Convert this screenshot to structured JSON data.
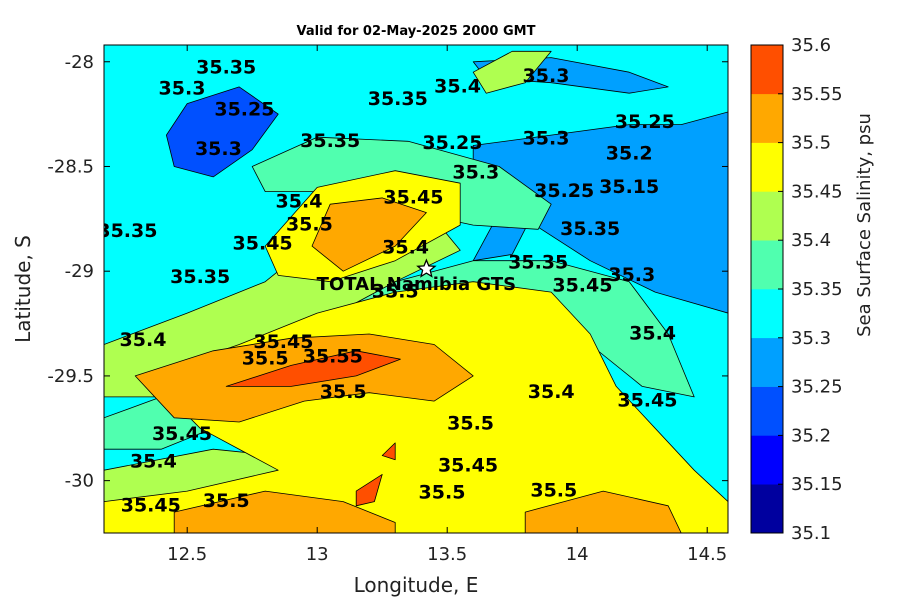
{
  "map": {
    "title": "Valid for 02-May-2025 2000 GMT",
    "xlabel": "Longitude, E",
    "ylabel": "Latitude, S",
    "xlim": [
      12.18,
      14.58
    ],
    "ylim": [
      -30.25,
      -27.92
    ],
    "x_ticks": [
      {
        "value": 12.5,
        "label": "12.5"
      },
      {
        "value": 13,
        "label": "13"
      },
      {
        "value": 13.5,
        "label": "13.5"
      },
      {
        "value": 14,
        "label": "14"
      },
      {
        "value": 14.5,
        "label": "14.5"
      }
    ],
    "y_ticks": [
      {
        "value": -28,
        "label": "-28"
      },
      {
        "value": -28.5,
        "label": "-28.5"
      },
      {
        "value": -29,
        "label": "-29"
      },
      {
        "value": -29.5,
        "label": "-29.5"
      },
      {
        "value": -30,
        "label": "-30"
      }
    ],
    "site": {
      "name": "TOTAL Namibia GTS",
      "lon": 13.42,
      "lat": -28.99,
      "marker": "star"
    },
    "background_color": "#00ffff",
    "contour_regions": [
      {
        "level": "35.1-35.15",
        "color": "#00009f",
        "points": [
          [
            14.2,
            -28.55
          ],
          [
            14.4,
            -28.45
          ],
          [
            14.58,
            -28.38
          ],
          [
            14.58,
            -28.88
          ],
          [
            14.35,
            -28.8
          ],
          [
            14.15,
            -28.7
          ],
          [
            14.08,
            -28.62
          ]
        ]
      },
      {
        "level": "35.2-35.25",
        "color": "#0050ff",
        "points": [
          [
            12.5,
            -28.2
          ],
          [
            12.7,
            -28.12
          ],
          [
            12.85,
            -28.25
          ],
          [
            12.75,
            -28.42
          ],
          [
            12.6,
            -28.55
          ],
          [
            12.45,
            -28.5
          ],
          [
            12.42,
            -28.35
          ]
        ]
      },
      {
        "level": "35.2-35.25",
        "color": "#0050ff",
        "points": [
          [
            14.0,
            -28.5
          ],
          [
            14.3,
            -28.36
          ],
          [
            14.58,
            -28.28
          ],
          [
            14.58,
            -29.0
          ],
          [
            14.3,
            -28.95
          ],
          [
            14.1,
            -28.8
          ],
          [
            13.95,
            -28.62
          ]
        ]
      },
      {
        "level": "35.25-35.3",
        "color": "#00a0ff",
        "points": [
          [
            13.6,
            -28.4
          ],
          [
            13.9,
            -28.35
          ],
          [
            14.2,
            -28.3
          ],
          [
            14.4,
            -28.3
          ],
          [
            14.58,
            -28.24
          ],
          [
            14.58,
            -29.2
          ],
          [
            14.3,
            -29.1
          ],
          [
            14.05,
            -28.95
          ],
          [
            13.8,
            -28.75
          ],
          [
            13.6,
            -28.55
          ]
        ]
      },
      {
        "level": "35.25-35.3",
        "color": "#00a0ff",
        "points": [
          [
            13.6,
            -28.95
          ],
          [
            13.7,
            -28.72
          ],
          [
            13.82,
            -28.75
          ],
          [
            13.75,
            -28.92
          ]
        ]
      },
      {
        "level": "35.25-35.3",
        "color": "#00a0ff",
        "points": [
          [
            13.6,
            -28.0
          ],
          [
            13.9,
            -27.98
          ],
          [
            14.2,
            -28.05
          ],
          [
            14.35,
            -28.12
          ],
          [
            14.2,
            -28.15
          ],
          [
            13.9,
            -28.1
          ],
          [
            13.65,
            -28.08
          ]
        ]
      },
      {
        "level": "35.35-35.4",
        "color": "#50ffaf",
        "points": [
          [
            12.75,
            -28.5
          ],
          [
            13.0,
            -28.36
          ],
          [
            13.35,
            -28.38
          ],
          [
            13.7,
            -28.5
          ],
          [
            13.9,
            -28.68
          ],
          [
            13.85,
            -28.8
          ],
          [
            13.6,
            -28.78
          ],
          [
            13.3,
            -28.7
          ],
          [
            13.0,
            -28.62
          ],
          [
            12.8,
            -28.62
          ]
        ]
      },
      {
        "level": "35.35-35.4",
        "color": "#50ffaf",
        "points": [
          [
            13.0,
            -29.25
          ],
          [
            13.3,
            -29.05
          ],
          [
            13.6,
            -28.95
          ],
          [
            13.9,
            -28.95
          ],
          [
            14.2,
            -29.05
          ],
          [
            14.35,
            -29.3
          ],
          [
            14.45,
            -29.6
          ],
          [
            14.25,
            -29.55
          ],
          [
            14.05,
            -29.35
          ],
          [
            13.7,
            -29.25
          ],
          [
            13.4,
            -29.25
          ],
          [
            13.1,
            -29.35
          ]
        ]
      },
      {
        "level": "35.35-35.4",
        "color": "#50ffaf",
        "points": [
          [
            12.18,
            -29.7
          ],
          [
            12.4,
            -29.6
          ],
          [
            12.6,
            -29.75
          ],
          [
            12.4,
            -29.85
          ],
          [
            12.18,
            -29.85
          ]
        ]
      },
      {
        "level": "35.4-35.45",
        "color": "#afff50",
        "points": [
          [
            12.18,
            -29.35
          ],
          [
            12.5,
            -29.2
          ],
          [
            12.8,
            -29.05
          ],
          [
            13.0,
            -28.85
          ],
          [
            13.2,
            -28.72
          ],
          [
            13.45,
            -28.75
          ],
          [
            13.55,
            -28.9
          ],
          [
            13.3,
            -29.05
          ],
          [
            13.0,
            -29.25
          ],
          [
            12.7,
            -29.4
          ],
          [
            12.5,
            -29.6
          ],
          [
            12.18,
            -29.6
          ]
        ]
      },
      {
        "level": "35.4-35.45",
        "color": "#afff50",
        "points": [
          [
            13.75,
            -27.95
          ],
          [
            13.9,
            -27.95
          ],
          [
            13.8,
            -28.1
          ],
          [
            13.65,
            -28.15
          ],
          [
            13.6,
            -28.05
          ]
        ]
      },
      {
        "level": "35.4-35.45",
        "color": "#afff50",
        "points": [
          [
            12.18,
            -29.95
          ],
          [
            12.6,
            -29.85
          ],
          [
            13.0,
            -29.9
          ],
          [
            12.8,
            -30.05
          ],
          [
            12.5,
            -30.1
          ],
          [
            12.18,
            -30.1
          ]
        ]
      },
      {
        "level": "35.45-35.5",
        "color": "#ffff00",
        "points": [
          [
            12.35,
            -29.5
          ],
          [
            12.7,
            -29.35
          ],
          [
            13.0,
            -29.2
          ],
          [
            13.3,
            -29.1
          ],
          [
            13.6,
            -29.05
          ],
          [
            13.9,
            -29.1
          ],
          [
            14.05,
            -29.3
          ],
          [
            14.15,
            -29.55
          ],
          [
            14.3,
            -29.75
          ],
          [
            14.45,
            -29.95
          ],
          [
            14.58,
            -30.1
          ],
          [
            14.58,
            -30.25
          ],
          [
            12.18,
            -30.25
          ],
          [
            12.18,
            -30.1
          ],
          [
            12.5,
            -30.05
          ],
          [
            12.85,
            -29.95
          ],
          [
            12.55,
            -29.75
          ]
        ]
      },
      {
        "level": "35.45-35.5",
        "color": "#ffff00",
        "points": [
          [
            12.8,
            -28.88
          ],
          [
            13.0,
            -28.6
          ],
          [
            13.3,
            -28.52
          ],
          [
            13.55,
            -28.58
          ],
          [
            13.55,
            -28.78
          ],
          [
            13.3,
            -28.95
          ],
          [
            13.05,
            -29.05
          ],
          [
            12.85,
            -29.02
          ]
        ]
      },
      {
        "level": "35.5-35.55",
        "color": "#ffa800",
        "points": [
          [
            12.3,
            -29.5
          ],
          [
            12.6,
            -29.38
          ],
          [
            12.9,
            -29.32
          ],
          [
            13.2,
            -29.3
          ],
          [
            13.45,
            -29.35
          ],
          [
            13.6,
            -29.5
          ],
          [
            13.45,
            -29.62
          ],
          [
            13.2,
            -29.58
          ],
          [
            12.95,
            -29.62
          ],
          [
            12.7,
            -29.72
          ],
          [
            12.45,
            -29.7
          ]
        ]
      },
      {
        "level": "35.5-35.55",
        "color": "#ffa800",
        "points": [
          [
            12.98,
            -28.88
          ],
          [
            13.05,
            -28.68
          ],
          [
            13.25,
            -28.65
          ],
          [
            13.42,
            -28.72
          ],
          [
            13.3,
            -28.88
          ],
          [
            13.1,
            -29.0
          ]
        ]
      },
      {
        "level": "35.5-35.55",
        "color": "#ffa800",
        "points": [
          [
            12.45,
            -30.15
          ],
          [
            12.8,
            -30.05
          ],
          [
            13.1,
            -30.1
          ],
          [
            13.3,
            -30.2
          ],
          [
            13.3,
            -30.25
          ],
          [
            12.45,
            -30.25
          ]
        ]
      },
      {
        "level": "35.5-35.55",
        "color": "#ffa800",
        "points": [
          [
            13.8,
            -30.15
          ],
          [
            14.1,
            -30.05
          ],
          [
            14.35,
            -30.12
          ],
          [
            14.4,
            -30.25
          ],
          [
            13.8,
            -30.25
          ]
        ]
      },
      {
        "level": "35.55-35.6",
        "color": "#ff4f00",
        "points": [
          [
            12.65,
            -29.55
          ],
          [
            12.9,
            -29.45
          ],
          [
            13.15,
            -29.38
          ],
          [
            13.32,
            -29.42
          ],
          [
            13.15,
            -29.5
          ],
          [
            12.9,
            -29.55
          ]
        ]
      },
      {
        "level": "35.55-35.6",
        "color": "#ff4f00",
        "points": [
          [
            13.15,
            -30.05
          ],
          [
            13.25,
            -29.97
          ],
          [
            13.22,
            -30.1
          ],
          [
            13.15,
            -30.12
          ]
        ]
      },
      {
        "level": "35.55-35.6",
        "color": "#ff4f00",
        "points": [
          [
            13.25,
            -29.88
          ],
          [
            13.3,
            -29.82
          ],
          [
            13.3,
            -29.9
          ]
        ]
      }
    ],
    "contour_labels": [
      {
        "text": "35.35",
        "lon": 12.65,
        "lat": -28.03
      },
      {
        "text": "35.3",
        "lon": 12.48,
        "lat": -28.13
      },
      {
        "text": "35.25",
        "lon": 12.72,
        "lat": -28.23
      },
      {
        "text": "35.3",
        "lon": 12.62,
        "lat": -28.42
      },
      {
        "text": "35.35",
        "lon": 13.05,
        "lat": -28.38
      },
      {
        "text": "35.35",
        "lon": 13.31,
        "lat": -28.18
      },
      {
        "text": "35.4",
        "lon": 13.54,
        "lat": -28.12
      },
      {
        "text": "35.25",
        "lon": 13.52,
        "lat": -28.39
      },
      {
        "text": "35.3",
        "lon": 13.88,
        "lat": -28.07
      },
      {
        "text": "35.3",
        "lon": 13.88,
        "lat": -28.37
      },
      {
        "text": "35.3",
        "lon": 13.61,
        "lat": -28.53
      },
      {
        "text": "35.25",
        "lon": 14.26,
        "lat": -28.29
      },
      {
        "text": "35.2",
        "lon": 14.2,
        "lat": -28.44
      },
      {
        "text": "35.15",
        "lon": 14.2,
        "lat": -28.6
      },
      {
        "text": "35.25",
        "lon": 13.95,
        "lat": -28.62
      },
      {
        "text": "35.35",
        "lon": 14.05,
        "lat": -28.8
      },
      {
        "text": "35.35",
        "lon": 13.85,
        "lat": -28.96
      },
      {
        "text": "35.3",
        "lon": 14.21,
        "lat": -29.02
      },
      {
        "text": "35.45",
        "lon": 14.02,
        "lat": -29.07
      },
      {
        "text": "35.4",
        "lon": 14.29,
        "lat": -29.3
      },
      {
        "text": "35.45",
        "lon": 14.27,
        "lat": -29.62
      },
      {
        "text": "35.4",
        "lon": 13.9,
        "lat": -29.58
      },
      {
        "text": "35.4",
        "lon": 12.93,
        "lat": -28.67
      },
      {
        "text": "35.5",
        "lon": 12.97,
        "lat": -28.78
      },
      {
        "text": "35.45",
        "lon": 13.37,
        "lat": -28.65
      },
      {
        "text": "35.4",
        "lon": 13.34,
        "lat": -28.89
      },
      {
        "text": "35.45",
        "lon": 12.79,
        "lat": -28.87
      },
      {
        "text": "35.35",
        "lon": 12.55,
        "lat": -29.03
      },
      {
        "text": "35.35",
        "lon": 12.27,
        "lat": -28.81
      },
      {
        "text": "35.4",
        "lon": 12.33,
        "lat": -29.33
      },
      {
        "text": "35.45",
        "lon": 12.87,
        "lat": -29.34
      },
      {
        "text": "35.5",
        "lon": 12.8,
        "lat": -29.42
      },
      {
        "text": "35.55",
        "lon": 13.06,
        "lat": -29.41
      },
      {
        "text": "35.5",
        "lon": 13.1,
        "lat": -29.58
      },
      {
        "text": "35.45",
        "lon": 12.48,
        "lat": -29.78
      },
      {
        "text": "35.4",
        "lon": 12.37,
        "lat": -29.91
      },
      {
        "text": "35.45",
        "lon": 12.36,
        "lat": -30.12
      },
      {
        "text": "35.5",
        "lon": 12.65,
        "lat": -30.1
      },
      {
        "text": "35.5",
        "lon": 13.59,
        "lat": -29.73
      },
      {
        "text": "35.45",
        "lon": 13.58,
        "lat": -29.93
      },
      {
        "text": "35.5",
        "lon": 13.48,
        "lat": -30.06
      },
      {
        "text": "35.5",
        "lon": 13.91,
        "lat": -30.05
      },
      {
        "text": "35.5",
        "lon": 13.3,
        "lat": -29.1
      }
    ]
  },
  "colorbar": {
    "title": "Sea Surface Salinity, psu",
    "levels": [
      35.1,
      35.15,
      35.2,
      35.25,
      35.3,
      35.35,
      35.4,
      35.45,
      35.5,
      35.55,
      35.6
    ],
    "tick_labels": [
      "35.1",
      "35.15",
      "35.2",
      "35.25",
      "35.3",
      "35.35",
      "35.4",
      "35.45",
      "35.5",
      "35.55",
      "35.6"
    ],
    "colors": [
      "#00009f",
      "#0000ff",
      "#0050ff",
      "#00a0ff",
      "#00ffff",
      "#50ffaf",
      "#afff50",
      "#ffff00",
      "#ffa800",
      "#ff4f00"
    ]
  }
}
